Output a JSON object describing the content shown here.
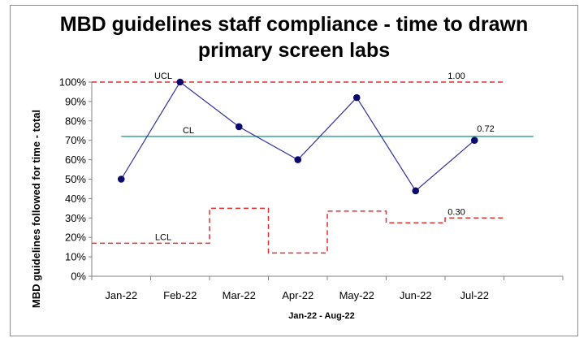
{
  "chart_data": {
    "type": "line",
    "title_lines": [
      "MBD guidelines staff compliance - time to drawn",
      "primary screen labs"
    ],
    "xlabel": "Jan-22 - Aug-22",
    "ylabel": "MBD guidelines followed for time - total",
    "categories": [
      "Jan-22",
      "Feb-22",
      "Mar-22",
      "Apr-22",
      "May-22",
      "Jun-22",
      "Jul-22"
    ],
    "y_ticks": [
      "0%",
      "10%",
      "20%",
      "30%",
      "40%",
      "50%",
      "60%",
      "70%",
      "80%",
      "90%",
      "100%"
    ],
    "ylim": [
      0,
      1
    ],
    "values": [
      0.5,
      1.0,
      0.77,
      0.6,
      0.92,
      0.44,
      0.7
    ],
    "cl": 0.72,
    "ucl": 1.0,
    "lcl": [
      0.17,
      0.17,
      0.35,
      0.12,
      0.335,
      0.275,
      0.3
    ],
    "labels": {
      "ucl": "UCL",
      "cl": "CL",
      "lcl": "LCL",
      "ucl_value": "1.00",
      "cl_value": "0.72",
      "lcl_value": "0.30"
    },
    "colors": {
      "series": "#2f2f9e",
      "marker": "#0b0b6e",
      "cl": "#2aa8a0",
      "limits": "#e03030",
      "axis": "#808080"
    },
    "grid": false,
    "legend": "none"
  }
}
